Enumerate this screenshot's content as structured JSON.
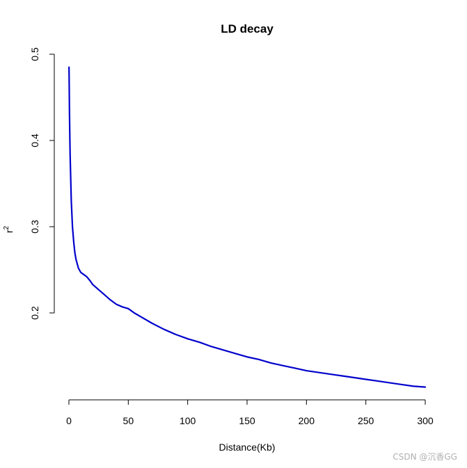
{
  "chart_data": {
    "type": "line",
    "title": "LD decay",
    "xlabel": "Distance(Kb)",
    "ylabel": "r",
    "ylabel_superscript": "2",
    "xlim": [
      0,
      300
    ],
    "ylim": [
      0.1,
      0.5
    ],
    "x_ticks": [
      0,
      50,
      100,
      150,
      200,
      250,
      300
    ],
    "x_tick_labels": [
      "0",
      "50",
      "100",
      "150",
      "200",
      "250",
      "300"
    ],
    "y_ticks": [
      0.2,
      0.3,
      0.4,
      0.5
    ],
    "y_tick_labels": [
      "0.2",
      "0.3",
      "0.4",
      "0.5"
    ],
    "grid": false,
    "series": [
      {
        "color": "#0000cc",
        "x": [
          0.1,
          0.5,
          1,
          2,
          3,
          4,
          5,
          6,
          8,
          10,
          12,
          15,
          18,
          20,
          25,
          30,
          35,
          40,
          45,
          50,
          55,
          60,
          70,
          80,
          90,
          100,
          110,
          120,
          130,
          140,
          150,
          160,
          170,
          180,
          190,
          200,
          210,
          220,
          230,
          240,
          250,
          260,
          270,
          280,
          290,
          300
        ],
        "y": [
          0.485,
          0.43,
          0.385,
          0.33,
          0.3,
          0.283,
          0.27,
          0.262,
          0.252,
          0.247,
          0.245,
          0.242,
          0.237,
          0.233,
          0.227,
          0.221,
          0.215,
          0.21,
          0.207,
          0.205,
          0.2,
          0.196,
          0.188,
          0.181,
          0.175,
          0.17,
          0.166,
          0.161,
          0.157,
          0.153,
          0.149,
          0.146,
          0.142,
          0.139,
          0.136,
          0.133,
          0.131,
          0.129,
          0.127,
          0.125,
          0.123,
          0.121,
          0.119,
          0.117,
          0.115,
          0.114
        ]
      }
    ]
  },
  "watermark": "CSDN @沉香GG"
}
